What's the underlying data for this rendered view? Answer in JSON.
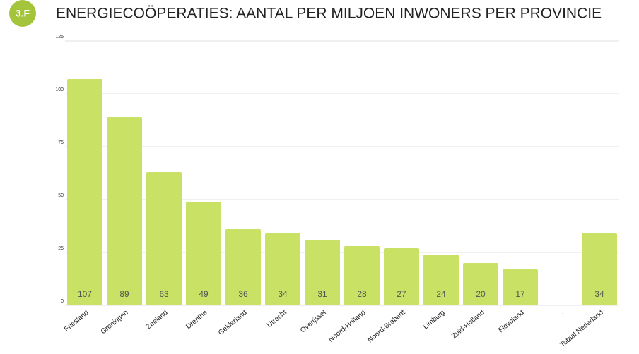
{
  "badge": "3.F",
  "chart_data": {
    "type": "bar",
    "title": "ENERGIECOÖPERATIES: AANTAL PER MILJOEN INWONERS PER PROVINCIE",
    "categories": [
      "Friesland",
      "Groningen",
      "Zeeland",
      "Drenthe",
      "Gelderland",
      "Utrecht",
      "Overijssel",
      "Noord-Holland",
      "Noord-Brabant",
      "Limburg",
      "Zuid-Holland",
      "Flevoland",
      ".",
      "Totaal Nederland"
    ],
    "values": [
      107,
      89,
      63,
      49,
      36,
      34,
      31,
      28,
      27,
      24,
      20,
      17,
      null,
      34
    ],
    "color": "#c9e165",
    "ylim": [
      0,
      125
    ],
    "yticks": [
      0,
      25,
      50,
      75,
      100,
      125
    ],
    "grid": true
  }
}
